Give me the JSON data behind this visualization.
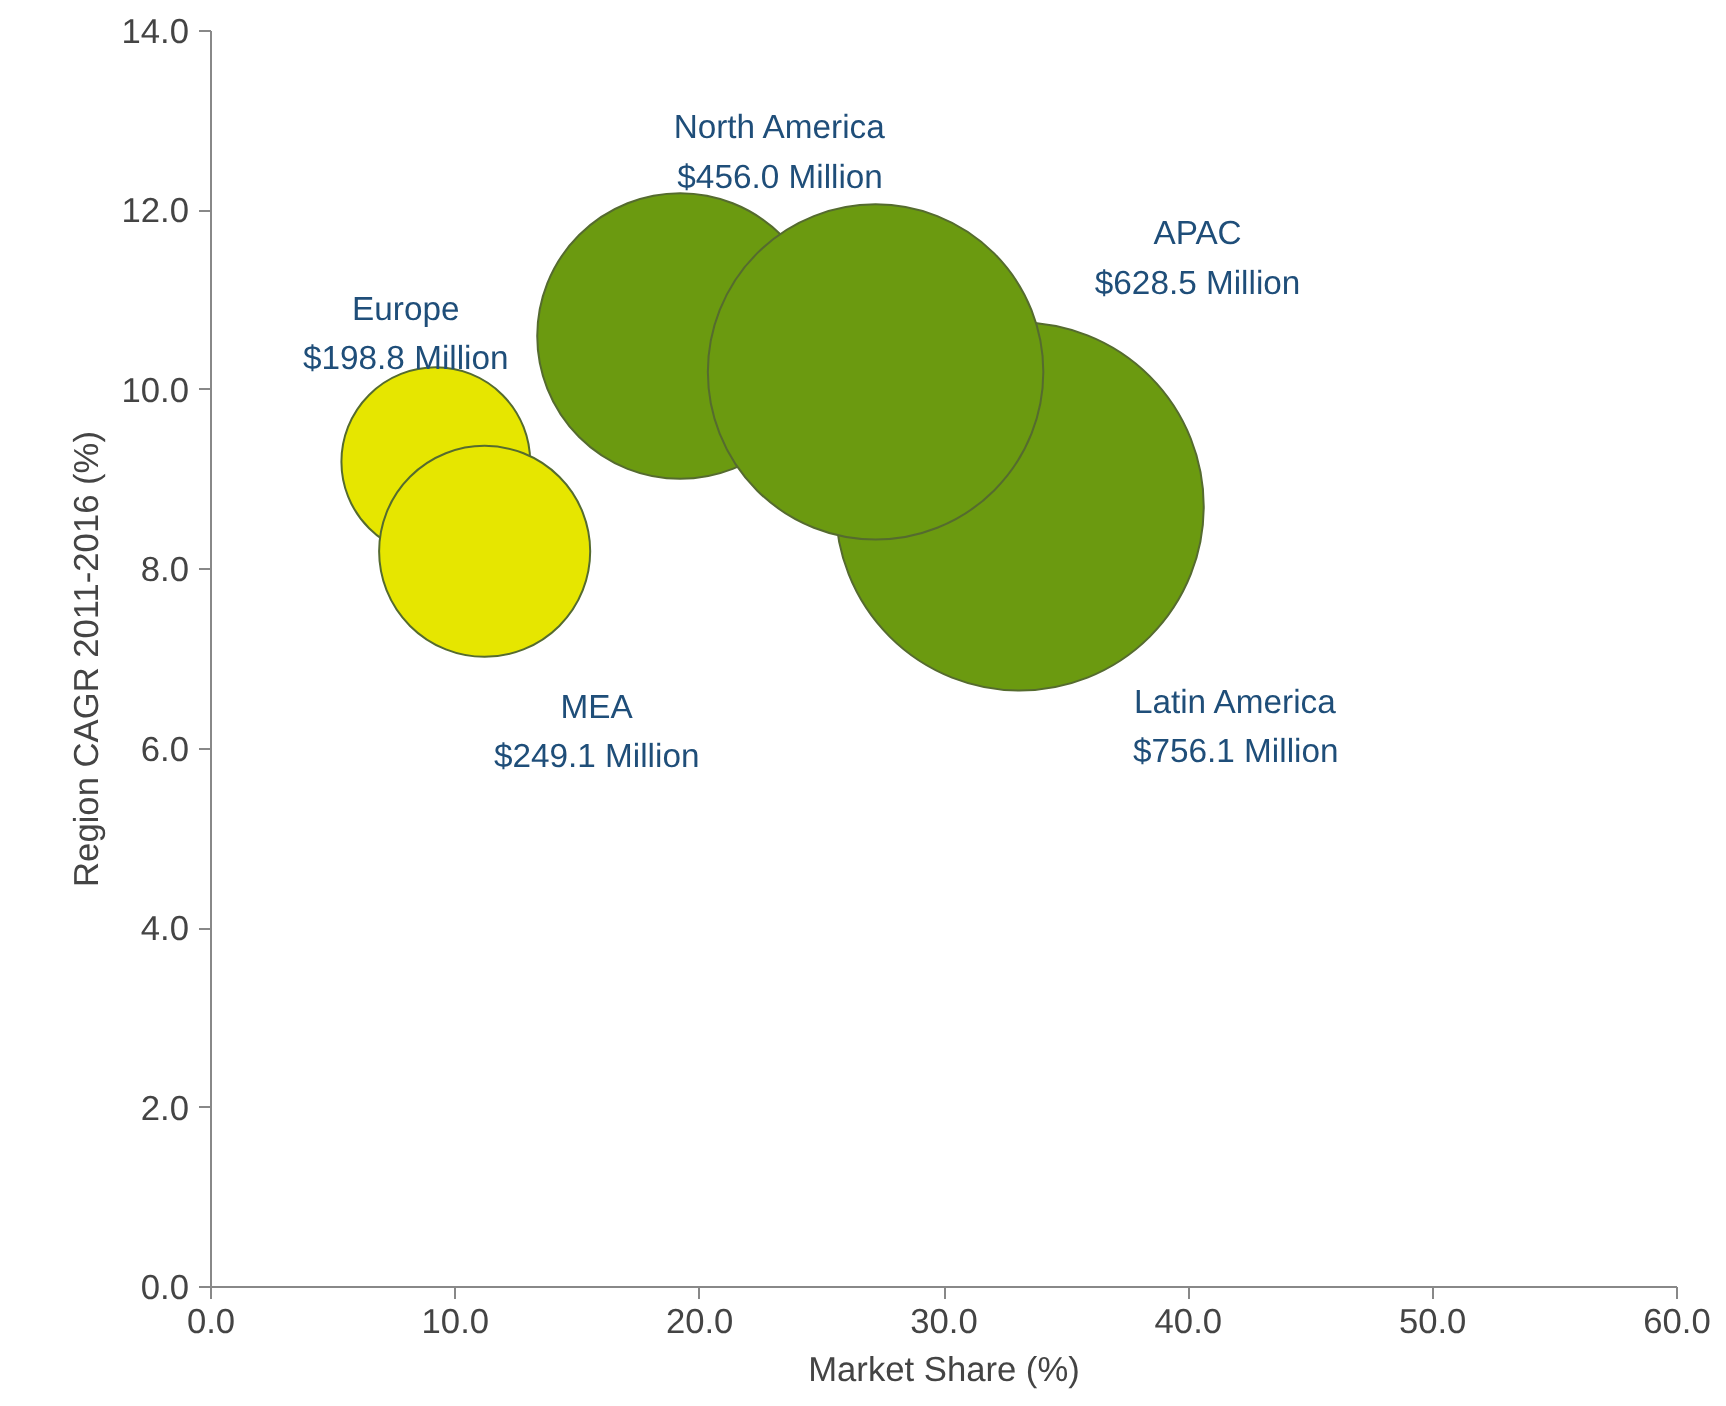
{
  "chart_data": {
    "type": "bubble",
    "xlabel": "Market Share (%)",
    "ylabel": "Region CAGR 2011-2016 (%)",
    "xlim": [
      0,
      60
    ],
    "ylim": [
      0,
      14
    ],
    "xticks": [
      {
        "value": 0,
        "label": "0.0"
      },
      {
        "value": 10,
        "label": "10.0"
      },
      {
        "value": 20,
        "label": "20.0"
      },
      {
        "value": 30,
        "label": "30.0"
      },
      {
        "value": 40,
        "label": "40.0"
      },
      {
        "value": 50,
        "label": "50.0"
      },
      {
        "value": 60,
        "label": "60.0"
      }
    ],
    "yticks": [
      {
        "value": 0,
        "label": "0.0"
      },
      {
        "value": 2,
        "label": "2.0"
      },
      {
        "value": 4,
        "label": "4.0"
      },
      {
        "value": 6,
        "label": "6.0"
      },
      {
        "value": 8,
        "label": "8.0"
      },
      {
        "value": 10,
        "label": "10.0"
      },
      {
        "value": 12,
        "label": "12.0"
      },
      {
        "value": 14,
        "label": "14.0"
      }
    ],
    "grid": false,
    "series": [
      {
        "colors": [
          "#6b9a10",
          "#e6e600",
          "#e6e600",
          "#6b9a10",
          "#6b9a10"
        ],
        "x": [
          33.1,
          9.2,
          11.2,
          19.2,
          27.2
        ],
        "values": [
          8.7,
          9.2,
          8.2,
          10.6,
          10.2
        ],
        "sizes": [
          1,
          0.263,
          0.329,
          0.603,
          0.831
        ]
      }
    ],
    "annotations": [
      "Latin America\n$756.1 Million",
      "Europe\n$198.8 Million",
      "MEA\n$249.1 Million",
      "North America\n$456.0 Million",
      "APAC\n$628.5 Million"
    ]
  }
}
